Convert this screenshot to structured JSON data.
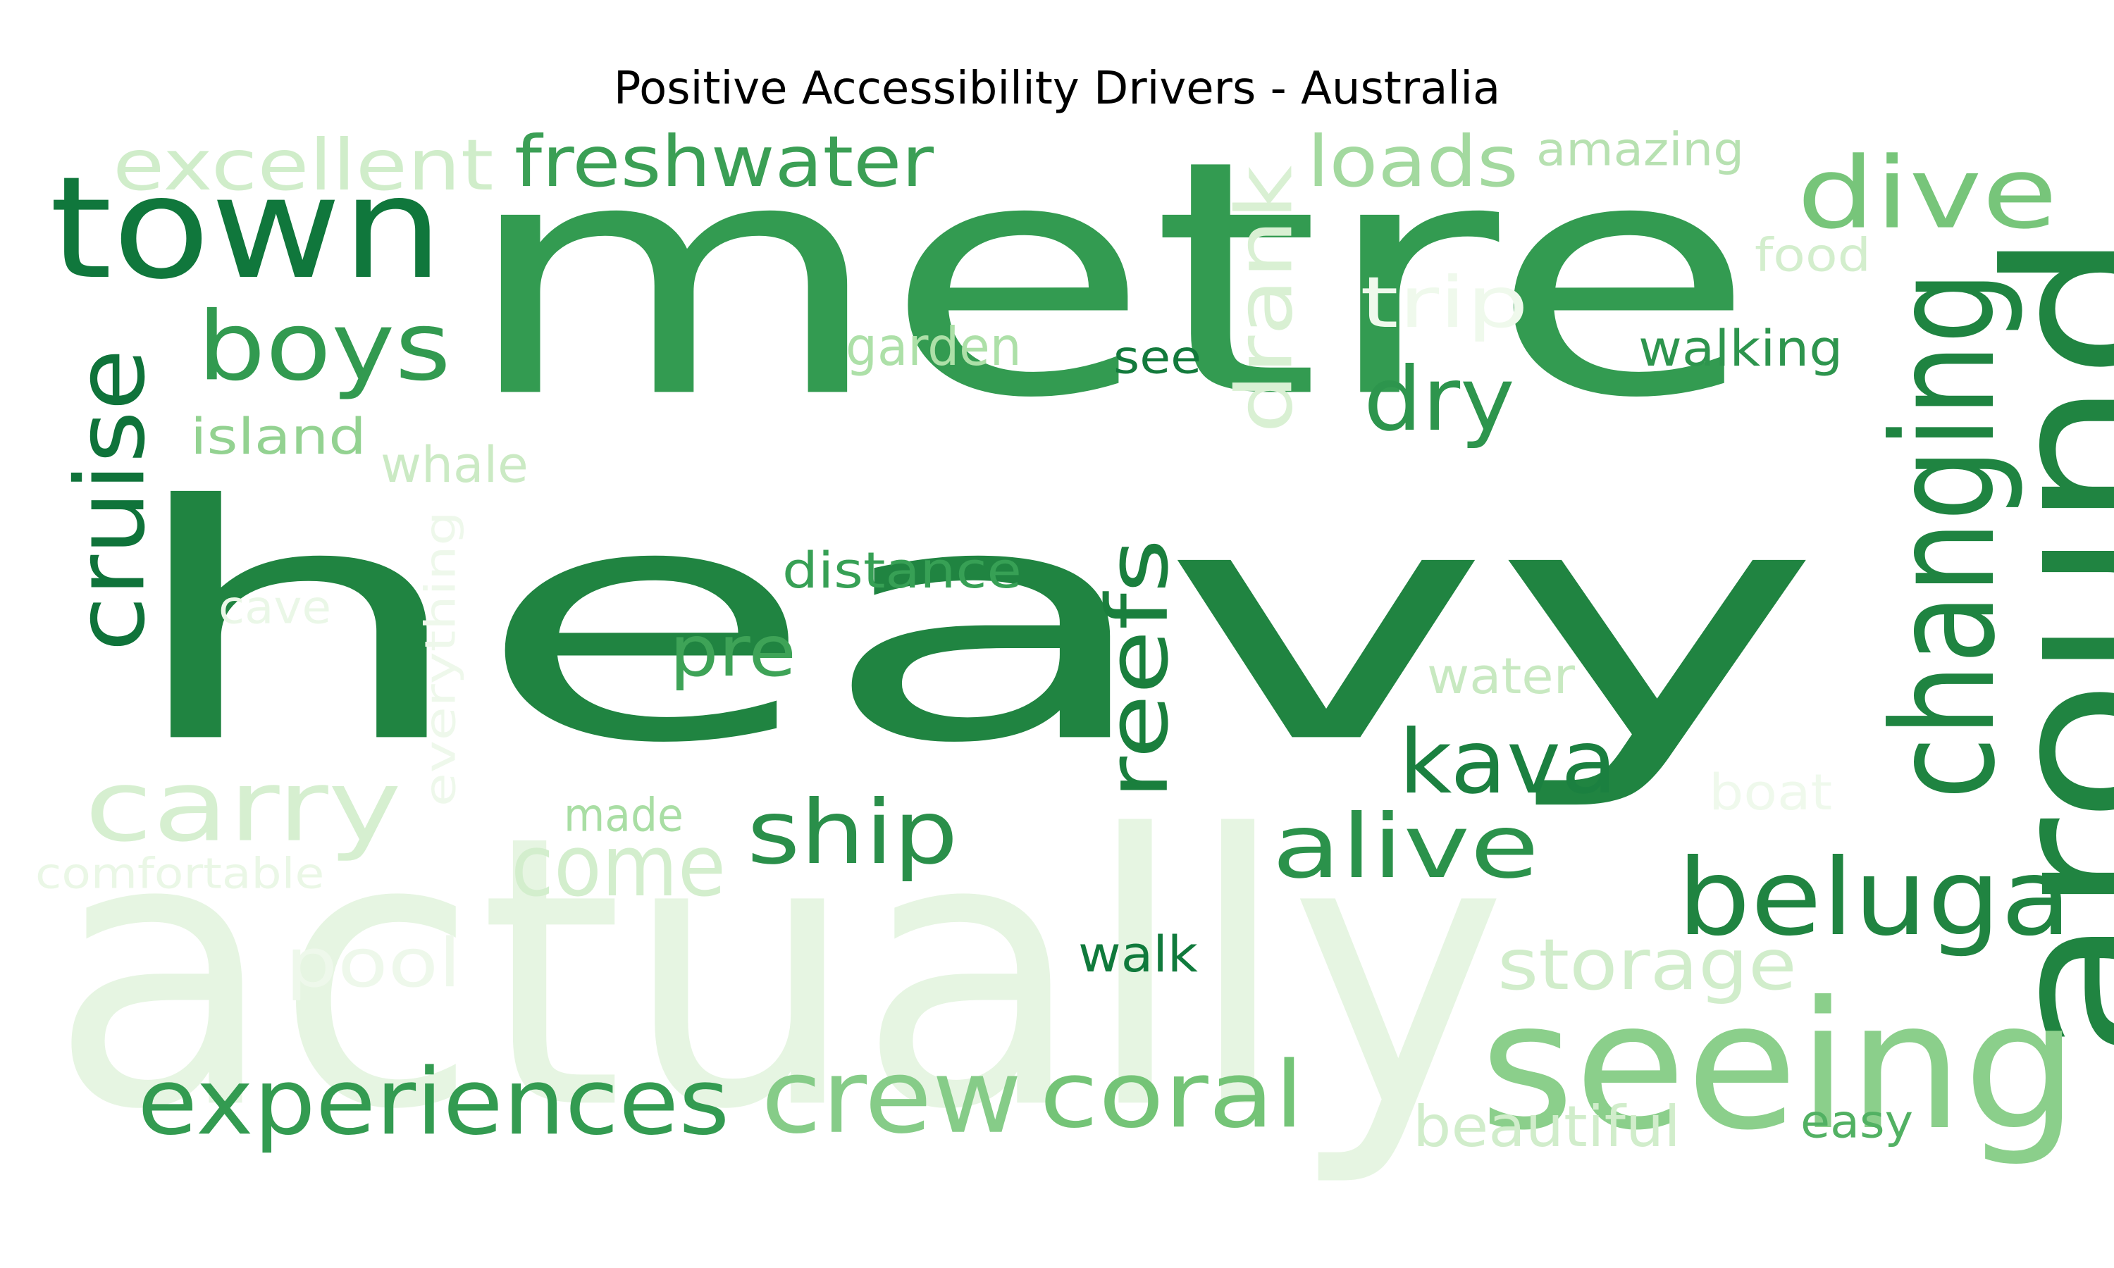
{
  "title": "Positive Accessibility Drivers - Australia",
  "words": [
    {
      "text": "heavy",
      "color": "#208441"
    },
    {
      "text": "metre",
      "color": "#339b51"
    },
    {
      "text": "actually",
      "color": "#e6f5e2"
    },
    {
      "text": "town",
      "color": "#10773c"
    },
    {
      "text": "around",
      "color": "#208441"
    },
    {
      "text": "seeing",
      "color": "#8bcf8b"
    },
    {
      "text": "changing",
      "color": "#1f8441"
    },
    {
      "text": "beluga",
      "color": "#208441"
    },
    {
      "text": "boys",
      "color": "#329a50"
    },
    {
      "text": "cruise",
      "color": "#0f733a"
    },
    {
      "text": "dive",
      "color": "#77c57a"
    },
    {
      "text": "carry",
      "color": "#d6efd0"
    },
    {
      "text": "crew",
      "color": "#86cc88"
    },
    {
      "text": "experiences",
      "color": "#339b51"
    },
    {
      "text": "coral",
      "color": "#74c477"
    },
    {
      "text": "freshwater",
      "color": "#3b9f55"
    },
    {
      "text": "excellent",
      "color": "#d0edca"
    },
    {
      "text": "drank",
      "color": "#d9f0d3"
    },
    {
      "text": "reefs",
      "color": "#1a7f3d"
    },
    {
      "text": "ship",
      "color": "#2a8f4a"
    },
    {
      "text": "kava",
      "color": "#1b8040"
    },
    {
      "text": "alive",
      "color": "#2b924b"
    },
    {
      "text": "dry",
      "color": "#2d954d"
    },
    {
      "text": "come",
      "color": "#d3eecd"
    },
    {
      "text": "loads",
      "color": "#a3d99f"
    },
    {
      "text": "storage",
      "color": "#d1edcb"
    },
    {
      "text": "pre",
      "color": "#3ea357"
    },
    {
      "text": "trip",
      "color": "#eff9ec"
    },
    {
      "text": "pool",
      "color": "#eef8eb"
    },
    {
      "text": "amazing",
      "color": "#b7e1b1"
    },
    {
      "text": "distance",
      "color": "#37a055"
    },
    {
      "text": "island",
      "color": "#93d291"
    },
    {
      "text": "whale",
      "color": "#cbeac4"
    },
    {
      "text": "garden",
      "color": "#ade0a8"
    },
    {
      "text": "walking",
      "color": "#2e954e"
    },
    {
      "text": "see",
      "color": "#137a3c"
    },
    {
      "text": "food",
      "color": "#d3eecd"
    },
    {
      "text": "everything",
      "color": "#eef8eb"
    },
    {
      "text": "cave",
      "color": "#eaf7e7"
    },
    {
      "text": "water",
      "color": "#c8e9c1"
    },
    {
      "text": "beautiful",
      "color": "#d1edcb"
    },
    {
      "text": "easy",
      "color": "#52b163"
    },
    {
      "text": "walk",
      "color": "#107a3c"
    },
    {
      "text": "made",
      "color": "#a9dea4"
    },
    {
      "text": "comfortable",
      "color": "#eaf7e6"
    },
    {
      "text": "boat",
      "color": "#eff9ec"
    }
  ]
}
